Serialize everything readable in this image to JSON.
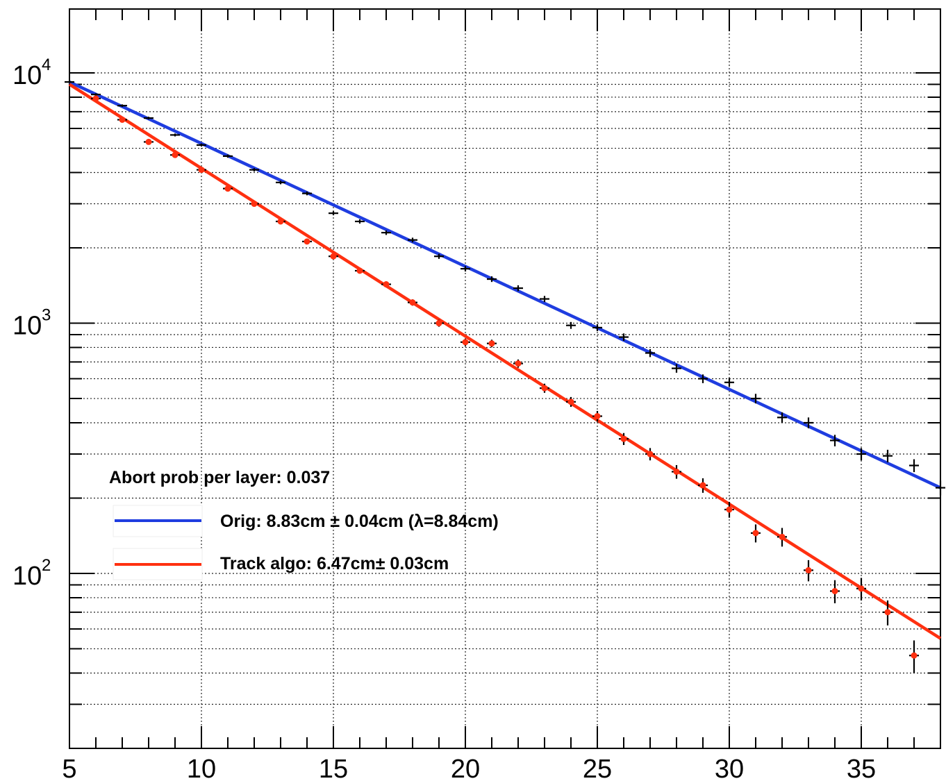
{
  "chart_data": {
    "type": "scatter",
    "title": "",
    "xlabel": "",
    "ylabel": "",
    "xlim": [
      5,
      38
    ],
    "ylim": [
      20,
      18000
    ],
    "yscale": "log",
    "grid": true,
    "x_ticks": [
      "5",
      "10",
      "15",
      "20",
      "25",
      "30",
      "35"
    ],
    "y_ticks": [
      {
        "base": "10",
        "exp": "2"
      },
      {
        "base": "10",
        "exp": "3"
      },
      {
        "base": "10",
        "exp": "4"
      }
    ],
    "legend_title": "Abort prob per layer: 0.037",
    "series": [
      {
        "name": "Orig: 8.83cm ± 0.04cm (λ=8.84cm)",
        "color": "#1f3de0",
        "marker_color": "#000000",
        "fit": {
          "x0": 5,
          "y0": 9200,
          "x1": 38,
          "y1": 220
        },
        "x": [
          5,
          6,
          7,
          8,
          9,
          10,
          11,
          12,
          13,
          14,
          15,
          16,
          17,
          18,
          19,
          20,
          21,
          22,
          23,
          24,
          25,
          26,
          27,
          28,
          29,
          30,
          31,
          32,
          33,
          34,
          35,
          36,
          37,
          38
        ],
        "y": [
          9200,
          8200,
          7400,
          6600,
          5650,
          5150,
          4650,
          4100,
          3650,
          3300,
          2750,
          2550,
          2300,
          2150,
          1850,
          1650,
          1500,
          1380,
          1250,
          980,
          960,
          880,
          760,
          660,
          600,
          580,
          500,
          420,
          400,
          340,
          300,
          295,
          270,
          220
        ],
        "yerr": [
          96,
          91,
          86,
          81,
          75,
          72,
          68,
          64,
          60,
          57,
          52,
          50,
          48,
          46,
          43,
          41,
          39,
          37,
          35,
          31,
          31,
          30,
          28,
          26,
          24,
          24,
          22,
          20,
          20,
          18,
          17,
          17,
          16,
          15
        ]
      },
      {
        "name": "Track algo: 6.47cm± 0.03cm",
        "color": "#ff3010",
        "marker_color": "#ff3010",
        "fit": {
          "x0": 5,
          "y0": 9000,
          "x1": 38,
          "y1": 55
        },
        "x": [
          6,
          7,
          8,
          9,
          10,
          11,
          12,
          13,
          14,
          15,
          16,
          17,
          18,
          19,
          20,
          21,
          22,
          23,
          24,
          25,
          26,
          27,
          28,
          29,
          30,
          31,
          32,
          33,
          34,
          35,
          36,
          37
        ],
        "y": [
          7900,
          6500,
          5300,
          4700,
          4100,
          3450,
          3000,
          2550,
          2120,
          1850,
          1620,
          1430,
          1210,
          1000,
          840,
          830,
          690,
          550,
          485,
          425,
          345,
          300,
          255,
          225,
          180,
          145,
          140,
          103,
          85,
          87,
          70,
          47
        ],
        "yerr": [
          89,
          81,
          73,
          69,
          64,
          59,
          55,
          50,
          46,
          43,
          40,
          38,
          35,
          32,
          29,
          29,
          26,
          23,
          22,
          21,
          19,
          17,
          16,
          15,
          13,
          12,
          12,
          10,
          9,
          9,
          8,
          7
        ]
      }
    ]
  }
}
